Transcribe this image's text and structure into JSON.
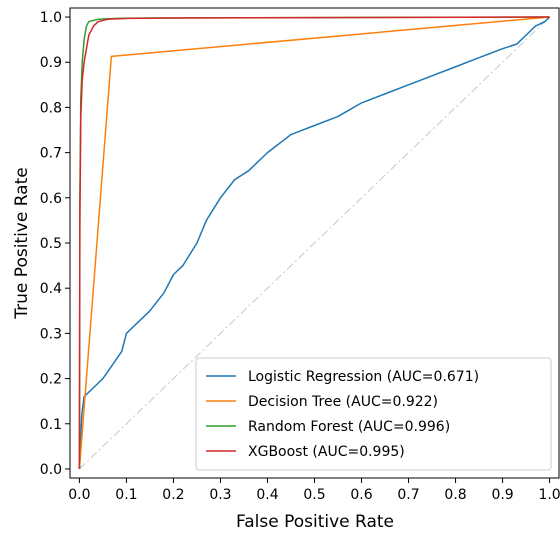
{
  "chart_data": {
    "type": "line",
    "title": "",
    "xlabel": "False Positive Rate",
    "ylabel": "True Positive Rate",
    "xlim": [
      -0.02,
      1.02
    ],
    "ylim": [
      -0.02,
      1.02
    ],
    "x_ticks": [
      "0.0",
      "0.1",
      "0.2",
      "0.3",
      "0.4",
      "0.5",
      "0.6",
      "0.7",
      "0.8",
      "0.9",
      "1.0"
    ],
    "y_ticks": [
      "0.0",
      "0.1",
      "0.2",
      "0.3",
      "0.4",
      "0.5",
      "0.6",
      "0.7",
      "0.8",
      "0.9",
      "1.0"
    ],
    "grid": false,
    "legend_position": "lower-right",
    "reference_line": {
      "style": "dash-dot",
      "color": "#c8c8c8",
      "points": [
        [
          0,
          0
        ],
        [
          1,
          1
        ]
      ]
    },
    "series": [
      {
        "name": "Logistic Regression (AUC=0.671)",
        "color": "#1f77b4",
        "points": [
          [
            0,
            0
          ],
          [
            0.005,
            0.12
          ],
          [
            0.01,
            0.16
          ],
          [
            0.03,
            0.18
          ],
          [
            0.05,
            0.2
          ],
          [
            0.07,
            0.23
          ],
          [
            0.09,
            0.26
          ],
          [
            0.1,
            0.3
          ],
          [
            0.12,
            0.32
          ],
          [
            0.15,
            0.35
          ],
          [
            0.18,
            0.39
          ],
          [
            0.2,
            0.43
          ],
          [
            0.22,
            0.45
          ],
          [
            0.25,
            0.5
          ],
          [
            0.27,
            0.55
          ],
          [
            0.3,
            0.6
          ],
          [
            0.33,
            0.64
          ],
          [
            0.36,
            0.66
          ],
          [
            0.4,
            0.7
          ],
          [
            0.45,
            0.74
          ],
          [
            0.5,
            0.76
          ],
          [
            0.55,
            0.78
          ],
          [
            0.6,
            0.81
          ],
          [
            0.65,
            0.83
          ],
          [
            0.7,
            0.85
          ],
          [
            0.75,
            0.87
          ],
          [
            0.8,
            0.89
          ],
          [
            0.85,
            0.91
          ],
          [
            0.9,
            0.93
          ],
          [
            0.93,
            0.94
          ],
          [
            0.95,
            0.96
          ],
          [
            0.97,
            0.98
          ],
          [
            0.99,
            0.99
          ],
          [
            1.0,
            1.0
          ]
        ]
      },
      {
        "name": "Decision Tree (AUC=0.922)",
        "color": "#ff7f0e",
        "points": [
          [
            0,
            0
          ],
          [
            0.068,
            0.913
          ],
          [
            1,
            1
          ]
        ]
      },
      {
        "name": "Random Forest (AUC=0.996)",
        "color": "#2ca02c",
        "points": [
          [
            0,
            0
          ],
          [
            0.001,
            0.6
          ],
          [
            0.003,
            0.82
          ],
          [
            0.006,
            0.9
          ],
          [
            0.01,
            0.95
          ],
          [
            0.015,
            0.98
          ],
          [
            0.02,
            0.99
          ],
          [
            0.04,
            0.995
          ],
          [
            0.08,
            0.997
          ],
          [
            0.15,
            0.998
          ],
          [
            1,
            1
          ]
        ]
      },
      {
        "name": "XGBoost (AUC=0.995)",
        "color": "#d62728",
        "points": [
          [
            0,
            0
          ],
          [
            0.001,
            0.55
          ],
          [
            0.003,
            0.78
          ],
          [
            0.006,
            0.86
          ],
          [
            0.01,
            0.9
          ],
          [
            0.015,
            0.93
          ],
          [
            0.02,
            0.96
          ],
          [
            0.03,
            0.98
          ],
          [
            0.04,
            0.99
          ],
          [
            0.06,
            0.995
          ],
          [
            0.1,
            0.997
          ],
          [
            0.2,
            0.998
          ],
          [
            1,
            1
          ]
        ]
      }
    ]
  }
}
